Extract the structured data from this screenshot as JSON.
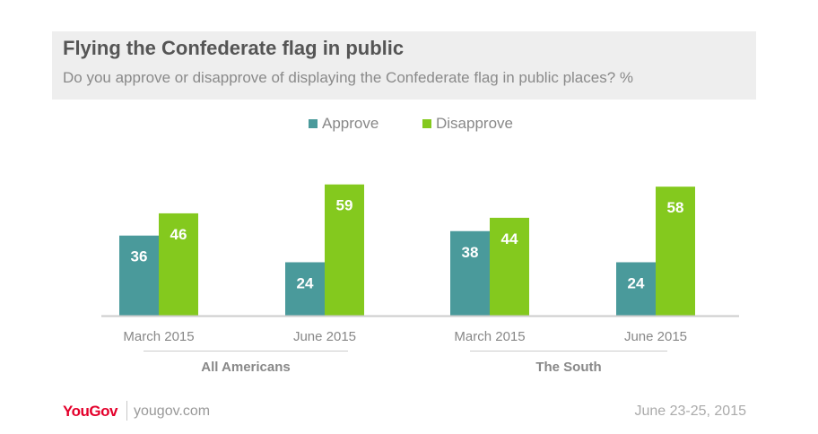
{
  "chart_data": {
    "type": "bar",
    "title": "Flying the Confederate flag in public",
    "subtitle": "Do you approve or disapprove of displaying the Confederate flag in public places? %",
    "categories": [
      "March 2015",
      "June 2015",
      "March 2015",
      "June 2015"
    ],
    "groups": [
      {
        "label": "All Americans",
        "categories": [
          0,
          1
        ]
      },
      {
        "label": "The South",
        "categories": [
          2,
          3
        ]
      }
    ],
    "series": [
      {
        "name": "Approve",
        "color": "#4a9a9b",
        "values": [
          36,
          24,
          38,
          24
        ]
      },
      {
        "name": "Disapprove",
        "color": "#84c91e",
        "values": [
          46,
          59,
          44,
          58
        ]
      }
    ],
    "ylim": [
      0,
      60
    ],
    "grid": false,
    "legend": "top-center"
  },
  "footer": {
    "logo": "YouGov",
    "site": "yougov.com",
    "date": "June 23-25, 2015"
  }
}
